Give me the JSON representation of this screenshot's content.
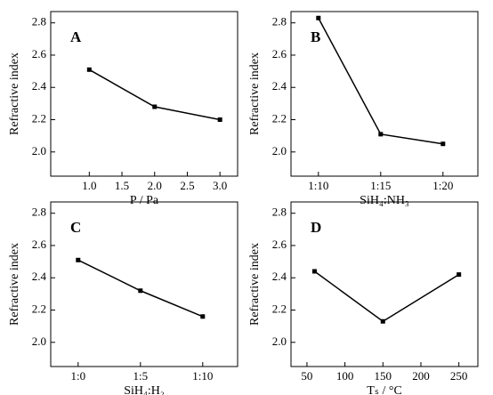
{
  "chart_data": [
    {
      "type": "line",
      "annotation": "A",
      "xlabel": "P / Pa",
      "ylabel": "Refractive index",
      "x": [
        1,
        2,
        3
      ],
      "series": [
        {
          "color": "#000000",
          "values": [
            2.51,
            2.28,
            2.2
          ]
        }
      ],
      "xlim": [
        0.41,
        3.27
      ],
      "xticks": [
        {
          "value": 1,
          "label": "1.0"
        },
        1.5,
        {
          "value": 2,
          "label": "2.0"
        },
        2.5,
        {
          "value": 3,
          "label": "3.0"
        }
      ],
      "ylim": [
        1.85,
        2.87
      ],
      "yticks": [
        {
          "value": 2,
          "label": "2.0"
        },
        2.2,
        2.4,
        2.6,
        2.8
      ]
    },
    {
      "type": "line",
      "annotation": "B",
      "xlabel": "SiH₄:NH₃",
      "ylabel": "Refractive index",
      "categories": [
        "1:10",
        "1:15",
        "1:20"
      ],
      "series": [
        {
          "color": "#000000",
          "values": [
            2.83,
            2.11,
            2.05
          ]
        }
      ],
      "ylim": [
        1.85,
        2.87
      ],
      "yticks": [
        {
          "value": 2,
          "label": "2.0"
        },
        2.2,
        2.4,
        2.6,
        2.8
      ]
    },
    {
      "type": "line",
      "annotation": "C",
      "xlabel": "SiH₄:H₂",
      "ylabel": "Refractive index",
      "categories": [
        "1:0",
        "1:5",
        "1:10"
      ],
      "series": [
        {
          "color": "#000000",
          "values": [
            2.51,
            2.32,
            2.16
          ]
        }
      ],
      "ylim": [
        1.85,
        2.87
      ],
      "yticks": [
        {
          "value": 2,
          "label": "2.0"
        },
        2.2,
        2.4,
        2.6,
        2.8
      ]
    },
    {
      "type": "line",
      "annotation": "D",
      "xlabel": "Tₛ / °C",
      "ylabel": "Refractive index",
      "x": [
        60,
        150,
        250
      ],
      "series": [
        {
          "color": "#000000",
          "values": [
            2.44,
            2.13,
            2.42
          ]
        }
      ],
      "xlim": [
        29,
        275
      ],
      "xticks": [
        50,
        100,
        150,
        200,
        250
      ],
      "ylim": [
        1.85,
        2.87
      ],
      "yticks": [
        {
          "value": 2,
          "label": "2.0"
        },
        2.2,
        2.4,
        2.6,
        2.8
      ]
    }
  ]
}
